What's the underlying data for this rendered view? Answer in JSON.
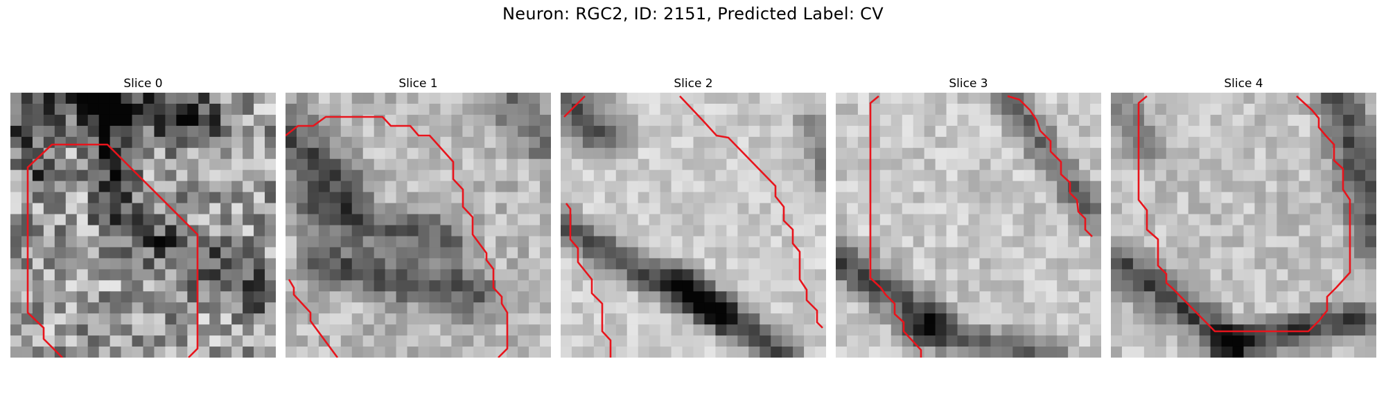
{
  "figure": {
    "title": "Neuron: RGC2, ID: 2151, Predicted Label: CV"
  },
  "panels": [
    {
      "title": "Slice 0"
    },
    {
      "title": "Slice 1"
    },
    {
      "title": "Slice 2"
    },
    {
      "title": "Slice 3"
    },
    {
      "title": "Slice 4"
    }
  ],
  "colors": {
    "contour": "#e8141c",
    "background": "#ffffff"
  }
}
